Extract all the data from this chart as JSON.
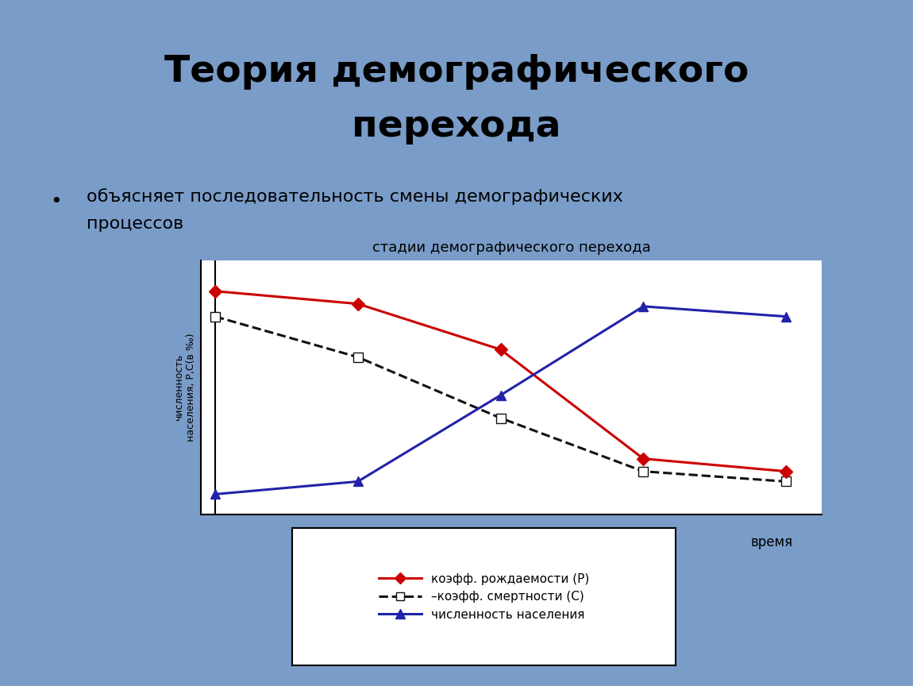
{
  "title_line1": "Теория демографического",
  "title_line2": "перехода",
  "bullet_char": "•",
  "bullet_text_line1": "объясняет последовательность смены демографических",
  "bullet_text_line2": "процессов",
  "chart_title": "стадии демографического перехода",
  "xlabel": "время",
  "ylabel_line1": "численность",
  "ylabel_line2": "населения, Р,С(в ‰)",
  "background_color": "#7a9cc8",
  "chart_bg": "#ffffff",
  "birth_x": [
    0,
    2,
    4,
    6,
    8
  ],
  "birth_y": [
    88,
    83,
    65,
    22,
    17
  ],
  "death_x": [
    0,
    2,
    4,
    6,
    8
  ],
  "death_y": [
    78,
    62,
    38,
    17,
    13
  ],
  "pop_x": [
    0,
    2,
    4,
    6,
    8
  ],
  "pop_y": [
    8,
    13,
    47,
    82,
    78
  ],
  "birth_color": "#cc0000",
  "death_color": "#111111",
  "pop_color": "#2222aa",
  "legend_label_birth": "коэфф. рождаемости (Р)",
  "legend_label_death": "–коэфф. смертности (С)",
  "legend_label_pop": "численность населения",
  "title_fontsize": 34,
  "bullet_fontsize": 16,
  "chart_title_fontsize": 13,
  "xlabel_fontsize": 12,
  "ylabel_fontsize": 9,
  "legend_fontsize": 11
}
